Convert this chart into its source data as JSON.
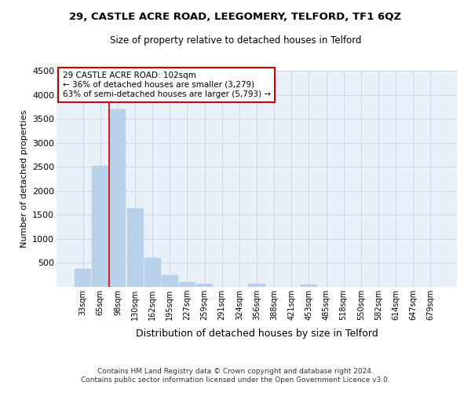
{
  "title1": "29, CASTLE ACRE ROAD, LEEGOMERY, TELFORD, TF1 6QZ",
  "title2": "Size of property relative to detached houses in Telford",
  "xlabel": "Distribution of detached houses by size in Telford",
  "ylabel": "Number of detached properties",
  "footer1": "Contains HM Land Registry data © Crown copyright and database right 2024.",
  "footer2": "Contains public sector information licensed under the Open Government Licence v3.0.",
  "categories": [
    "33sqm",
    "65sqm",
    "98sqm",
    "130sqm",
    "162sqm",
    "195sqm",
    "227sqm",
    "259sqm",
    "291sqm",
    "324sqm",
    "356sqm",
    "388sqm",
    "421sqm",
    "453sqm",
    "485sqm",
    "518sqm",
    "550sqm",
    "582sqm",
    "614sqm",
    "647sqm",
    "679sqm"
  ],
  "values": [
    370,
    2520,
    3700,
    1630,
    600,
    240,
    100,
    60,
    0,
    0,
    60,
    0,
    0,
    50,
    0,
    0,
    0,
    0,
    0,
    0,
    0
  ],
  "bar_color": "#b8d0e8",
  "bar_edge_color": "#b8d0e8",
  "grid_color": "#c5d8ea",
  "bg_color": "#eaf0f8",
  "annotation_box_color": "#ffffff",
  "annotation_box_edge": "#cc0000",
  "red_line_x": 2.5,
  "red_line_color": "#cc0000",
  "annotation_text1": "29 CASTLE ACRE ROAD: 102sqm",
  "annotation_text2": "← 36% of detached houses are smaller (3,279)",
  "annotation_text3": "63% of semi-detached houses are larger (5,793) →",
  "ylim": [
    0,
    4500
  ],
  "yticks": [
    0,
    500,
    1000,
    1500,
    2000,
    2500,
    3000,
    3500,
    4000,
    4500
  ]
}
